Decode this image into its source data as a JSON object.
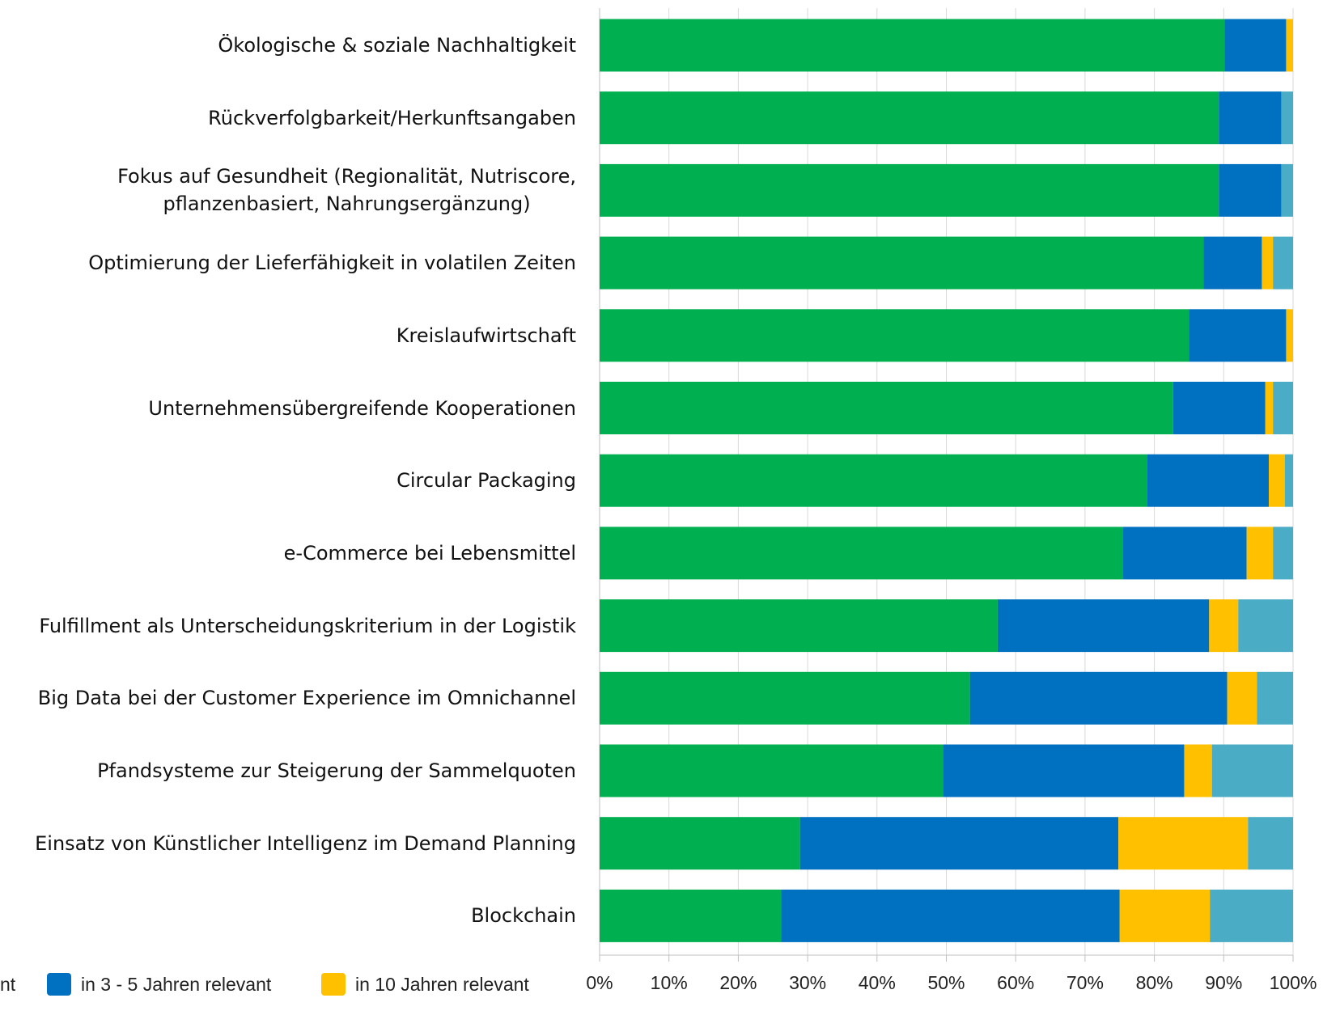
{
  "chart_data": {
    "type": "stacked_barh",
    "categories": [
      "Ökologische & soziale Nachhaltigkeit",
      "Rückverfolgbarkeit/Herkunftsangaben",
      "Fokus auf Gesundheit (Regionalität, Nutriscore,\npflanzenbasiert, Nahrungsergänzung)",
      "Optimierung der Lieferfähigkeit in volatilen Zeiten",
      "Kreislaufwirtschaft",
      "Unternehmensübergreifende Kooperationen",
      "Circular Packaging",
      "e-Commerce bei Lebensmittel",
      "Fulfillment als Unterscheidungskriterium in der Logistik",
      "Big Data bei der Customer Experience im Omnichannel",
      "Pfandsysteme zur Steigerung der Sammelquoten",
      "Einsatz von Künstlicher Intelligenz im Demand Planning",
      "Blockchain"
    ],
    "series": [
      {
        "name": "nt",
        "color": "#00b050",
        "values": [
          90.1,
          89.3,
          89.3,
          87.1,
          85.0,
          82.7,
          79.0,
          75.5,
          57.4,
          53.4,
          49.5,
          28.9,
          26.2
        ]
      },
      {
        "name": "in 3 - 5 Jahren relevant",
        "color": "#0070c0",
        "values": [
          8.9,
          9.0,
          9.0,
          8.4,
          14.0,
          13.3,
          17.5,
          17.8,
          30.5,
          37.1,
          34.8,
          45.9,
          48.8
        ]
      },
      {
        "name": "in 10 Jahren relevant",
        "color": "#ffc000",
        "values": [
          1.0,
          0,
          0,
          1.6,
          1.0,
          1.1,
          2.3,
          3.8,
          4.2,
          4.3,
          4.0,
          18.7,
          13.0
        ]
      },
      {
        "color": "#4bacc6",
        "values": [
          0,
          1.7,
          1.7,
          2.9,
          0,
          2.9,
          1.2,
          2.9,
          7.9,
          5.2,
          11.7,
          6.5,
          12.0
        ]
      }
    ],
    "xlim": [
      0,
      100
    ],
    "xticks": [
      {
        "value": 0,
        "label": "0%"
      },
      {
        "value": 10,
        "label": "10%"
      },
      {
        "value": 20,
        "label": "20%"
      },
      {
        "value": 30,
        "label": "30%"
      },
      {
        "value": 40,
        "label": "40%"
      },
      {
        "value": 50,
        "label": "50%"
      },
      {
        "value": 60,
        "label": "60%"
      },
      {
        "value": 70,
        "label": "70%"
      },
      {
        "value": 80,
        "label": "80%"
      },
      {
        "value": 90,
        "label": "90%"
      },
      {
        "value": 100,
        "label": "100%"
      }
    ],
    "grid": true
  }
}
